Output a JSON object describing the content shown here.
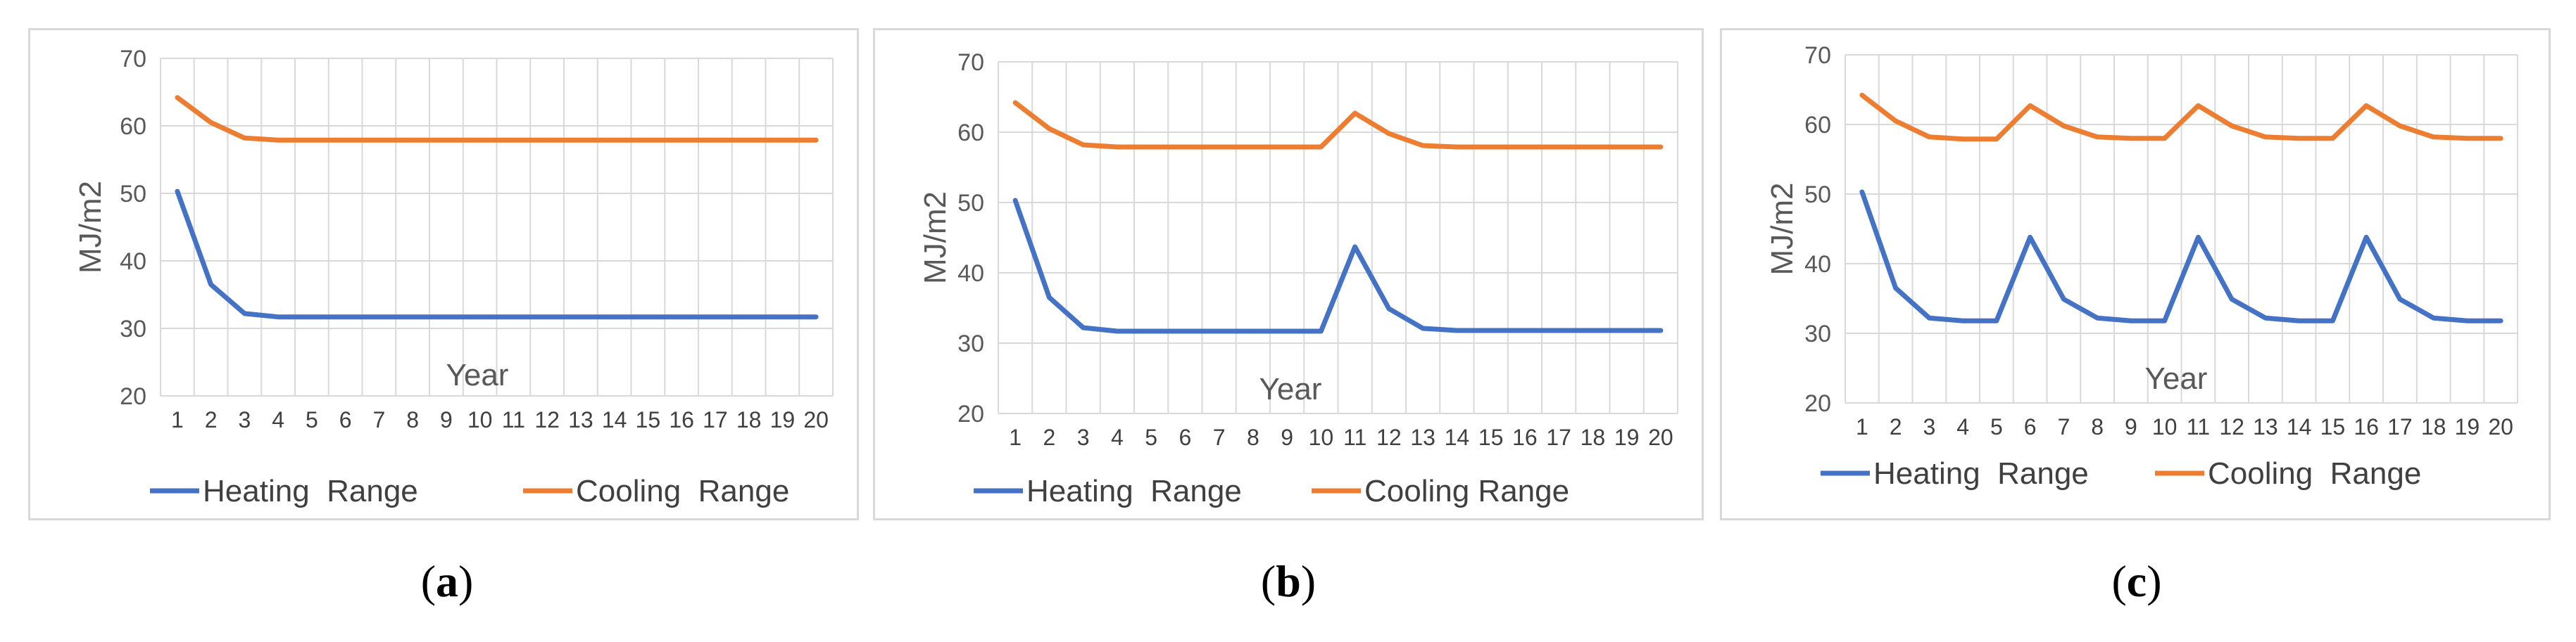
{
  "chart_data": [
    {
      "type": "line",
      "panel_label": "a",
      "xlabel": "Year",
      "ylabel": "MJ/m2",
      "ylim": [
        20,
        70
      ],
      "yticks": [
        20,
        30,
        40,
        50,
        60,
        70
      ],
      "categories": [
        "1",
        "2",
        "3",
        "4",
        "5",
        "6",
        "7",
        "8",
        "9",
        "10",
        "11",
        "12",
        "13",
        "14",
        "15",
        "16",
        "17",
        "18",
        "19",
        "20"
      ],
      "grid": true,
      "legend": "bottom",
      "series": [
        {
          "name": "Heating  Range",
          "color": "#4472c4",
          "values": [
            50.3,
            36.5,
            32.2,
            31.7,
            31.7,
            31.7,
            31.7,
            31.7,
            31.7,
            31.7,
            31.7,
            31.7,
            31.7,
            31.7,
            31.7,
            31.7,
            31.7,
            31.7,
            31.7,
            31.7
          ]
        },
        {
          "name": "Cooling  Range",
          "color": "#ed7d31",
          "values": [
            64.2,
            60.5,
            58.2,
            57.9,
            57.9,
            57.9,
            57.9,
            57.9,
            57.9,
            57.9,
            57.9,
            57.9,
            57.9,
            57.9,
            57.9,
            57.9,
            57.9,
            57.9,
            57.9,
            57.9
          ]
        }
      ]
    },
    {
      "type": "line",
      "panel_label": "b",
      "xlabel": "Year",
      "ylabel": "MJ/m2",
      "ylim": [
        20,
        70
      ],
      "yticks": [
        20,
        30,
        40,
        50,
        60,
        70
      ],
      "categories": [
        "1",
        "2",
        "3",
        "4",
        "5",
        "6",
        "7",
        "8",
        "9",
        "10",
        "11",
        "12",
        "13",
        "14",
        "15",
        "16",
        "17",
        "18",
        "19",
        "20"
      ],
      "grid": true,
      "legend": "bottom",
      "series": [
        {
          "name": "Heating  Range",
          "color": "#4472c4",
          "values": [
            50.3,
            36.5,
            32.2,
            31.7,
            31.7,
            31.7,
            31.7,
            31.7,
            31.7,
            31.7,
            43.7,
            34.9,
            32.1,
            31.8,
            31.8,
            31.8,
            31.8,
            31.8,
            31.8,
            31.8
          ]
        },
        {
          "name": "Cooling Range",
          "color": "#ed7d31",
          "values": [
            64.2,
            60.5,
            58.2,
            57.9,
            57.9,
            57.9,
            57.9,
            57.9,
            57.9,
            57.9,
            62.7,
            59.8,
            58.1,
            57.9,
            57.9,
            57.9,
            57.9,
            57.9,
            57.9,
            57.9
          ]
        }
      ]
    },
    {
      "type": "line",
      "panel_label": "c",
      "xlabel": "Year",
      "ylabel": "MJ/m2",
      "ylim": [
        20,
        70
      ],
      "yticks": [
        20,
        30,
        40,
        50,
        60,
        70
      ],
      "categories": [
        "1",
        "2",
        "3",
        "4",
        "5",
        "6",
        "7",
        "8",
        "9",
        "10",
        "11",
        "12",
        "13",
        "14",
        "15",
        "16",
        "17",
        "18",
        "19",
        "20"
      ],
      "grid": true,
      "legend": "bottom",
      "series": [
        {
          "name": "Heating  Range",
          "color": "#4472c4",
          "values": [
            50.3,
            36.5,
            32.2,
            31.8,
            31.8,
            43.8,
            34.9,
            32.2,
            31.8,
            31.8,
            43.8,
            34.9,
            32.2,
            31.8,
            31.8,
            43.8,
            34.9,
            32.2,
            31.8,
            31.8
          ]
        },
        {
          "name": "Cooling  Range",
          "color": "#ed7d31",
          "values": [
            64.2,
            60.5,
            58.2,
            57.9,
            57.9,
            62.7,
            59.8,
            58.2,
            58.0,
            58.0,
            62.7,
            59.8,
            58.2,
            58.0,
            58.0,
            62.7,
            59.8,
            58.2,
            58.0,
            58.0
          ]
        }
      ]
    }
  ]
}
